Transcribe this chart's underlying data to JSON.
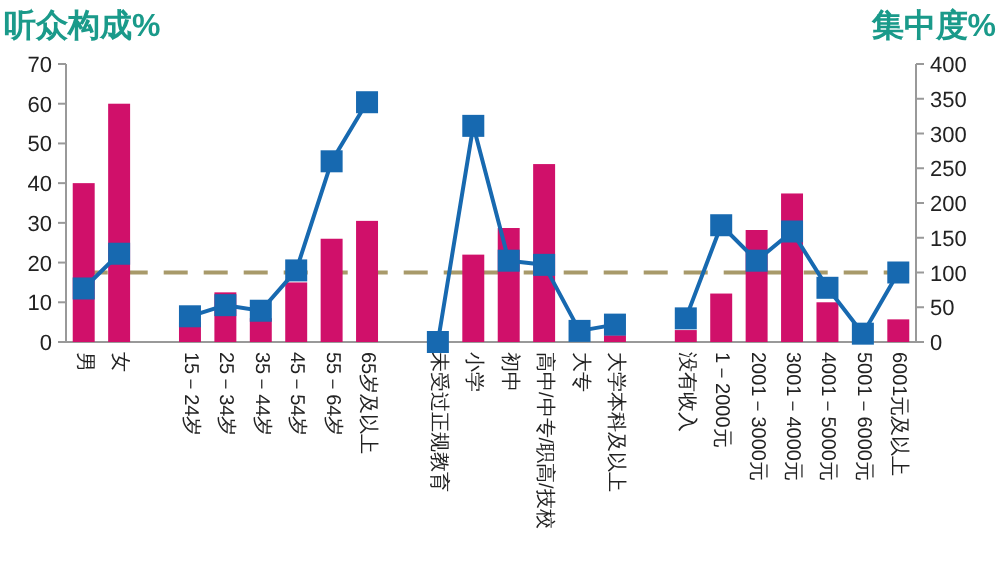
{
  "chart_data": {
    "type": "bar",
    "ylabel": "听众构成%",
    "y2label": "集中度%",
    "categories": [
      "男",
      "女",
      null,
      "15－24岁",
      "25－34岁",
      "35－44岁",
      "45－54岁",
      "55－64岁",
      "65岁及以上",
      null,
      "未受过正规教育",
      "小学",
      "初中",
      "高中/中专/职高/技校",
      "大专",
      "大学本科及以上",
      null,
      "没有收入",
      "1－2000元",
      "2001－3000元",
      "3001－4000元",
      "4001－5000元",
      "5001－6000元",
      "6001元及以上"
    ],
    "series": [
      {
        "color": "#d0106a",
        "values": [
          40,
          60,
          null,
          5,
          12.5,
          6,
          15,
          26,
          30.5,
          null,
          0,
          22,
          28.7,
          44.8,
          null,
          1.7,
          null,
          3,
          12.2,
          28.2,
          37.4,
          10,
          0,
          5.7
        ]
      },
      {
        "type": "line",
        "axis": "y2",
        "color": "#1769b0",
        "marker": "square",
        "values": [
          77,
          127,
          null,
          37,
          53,
          45,
          103,
          260,
          345,
          null,
          0,
          311,
          117,
          111,
          16,
          25,
          null,
          34,
          168,
          117,
          159,
          78,
          12,
          100
        ]
      }
    ],
    "ylim": [
      0,
      70
    ],
    "yticks": [
      0,
      10,
      20,
      30,
      40,
      50,
      60,
      70
    ],
    "y2lim": [
      0,
      400
    ],
    "y2ticks": [
      0,
      50,
      100,
      150,
      200,
      250,
      300,
      350,
      400
    ],
    "ref_lines": [
      {
        "axis": "y2",
        "value": 100,
        "color": "#a89a6a",
        "line_style": "dashed"
      }
    ],
    "grid": false
  }
}
